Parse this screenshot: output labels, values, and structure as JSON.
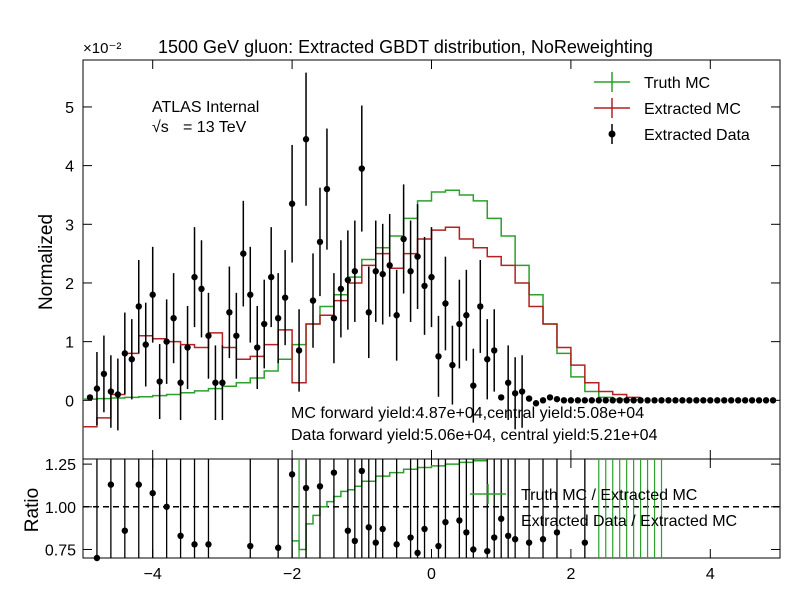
{
  "title": "1500 GeV gluon: Extracted GBDT distribution, NoReweighting",
  "scale_label": "×10⁻²",
  "atlas_label": "ATLAS Internal",
  "energy_sqrt": "√s",
  "energy_value": "= 13 TeV",
  "annotations": {
    "mc_yield": "MC forward yield:4.87e+04,central yield:5.08e+04",
    "data_yield": "Data forward yield:5.06e+04, central yield:5.21e+04"
  },
  "colors": {
    "truth": "#2ca02c",
    "extracted_mc": "#b22222",
    "data": "#000000"
  },
  "chart_data": [
    {
      "type": "line",
      "panel": "main",
      "ylabel": "Normalized",
      "ylim": [
        -1,
        5.8
      ],
      "xlim": [
        -5,
        5
      ],
      "yticks": [
        0,
        1,
        2,
        3,
        4,
        5
      ],
      "ytick_labels": [
        "0",
        "1",
        "2",
        "3",
        "4",
        "5"
      ],
      "xticks": [
        -4,
        -2,
        0,
        2,
        4
      ],
      "legend": [
        "Truth MC",
        "Extracted MC",
        "Extracted Data"
      ],
      "legend_position": "top-right",
      "series": [
        {
          "name": "Truth MC",
          "style": "step",
          "x": [
            -5,
            -4.8,
            -4.6,
            -4.4,
            -4.2,
            -4.0,
            -3.8,
            -3.6,
            -3.4,
            -3.2,
            -3.0,
            -2.8,
            -2.6,
            -2.4,
            -2.2,
            -2.0,
            -1.8,
            -1.6,
            -1.4,
            -1.2,
            -1.0,
            -0.8,
            -0.6,
            -0.4,
            -0.2,
            0.0,
            0.2,
            0.4,
            0.6,
            0.8,
            1.0,
            1.2,
            1.4,
            1.6,
            1.8,
            2.0,
            2.2,
            2.4,
            2.6,
            2.8,
            3.0
          ],
          "values": [
            0.02,
            0.03,
            0.04,
            0.05,
            0.06,
            0.08,
            0.1,
            0.13,
            0.16,
            0.2,
            0.24,
            0.3,
            0.38,
            0.5,
            0.7,
            0.95,
            1.3,
            1.6,
            1.8,
            2.1,
            2.4,
            2.6,
            2.8,
            3.1,
            3.4,
            3.55,
            3.58,
            3.5,
            3.4,
            3.1,
            2.8,
            2.3,
            1.8,
            1.3,
            0.8,
            0.4,
            0.15,
            0.05,
            0.02,
            0.01,
            0.0
          ]
        },
        {
          "name": "Extracted MC",
          "style": "step",
          "x": [
            -5,
            -4.8,
            -4.6,
            -4.4,
            -4.2,
            -4.0,
            -3.8,
            -3.6,
            -3.4,
            -3.2,
            -3.0,
            -2.8,
            -2.6,
            -2.4,
            -2.2,
            -2.0,
            -1.8,
            -1.6,
            -1.4,
            -1.2,
            -1.0,
            -0.8,
            -0.6,
            -0.4,
            -0.2,
            0.0,
            0.2,
            0.4,
            0.6,
            0.8,
            1.0,
            1.2,
            1.4,
            1.6,
            1.8,
            2.0,
            2.2,
            2.4,
            2.6,
            2.8,
            3.0
          ],
          "values": [
            -0.45,
            -0.3,
            0.1,
            0.8,
            1.1,
            1.05,
            1.0,
            0.95,
            0.9,
            1.15,
            0.9,
            0.7,
            0.75,
            0.95,
            1.2,
            0.3,
            1.3,
            1.45,
            1.7,
            2.0,
            2.3,
            2.5,
            2.25,
            2.5,
            2.75,
            2.9,
            2.95,
            2.75,
            2.6,
            2.45,
            2.3,
            2.0,
            1.6,
            1.3,
            0.9,
            0.6,
            0.3,
            0.15,
            0.1,
            0.05,
            0.0
          ]
        },
        {
          "name": "Extracted Data",
          "style": "points",
          "x": [
            -4.9,
            -4.8,
            -4.7,
            -4.6,
            -4.5,
            -4.4,
            -4.3,
            -4.2,
            -4.1,
            -4.0,
            -3.9,
            -3.8,
            -3.7,
            -3.6,
            -3.5,
            -3.4,
            -3.3,
            -3.2,
            -3.1,
            -3.0,
            -2.9,
            -2.8,
            -2.7,
            -2.6,
            -2.5,
            -2.4,
            -2.3,
            -2.2,
            -2.1,
            -2.0,
            -1.9,
            -1.8,
            -1.7,
            -1.6,
            -1.5,
            -1.4,
            -1.3,
            -1.2,
            -1.1,
            -1.0,
            -0.9,
            -0.8,
            -0.7,
            -0.6,
            -0.5,
            -0.4,
            -0.3,
            -0.2,
            -0.1,
            0.0,
            0.1,
            0.2,
            0.3,
            0.4,
            0.5,
            0.6,
            0.7,
            0.8,
            0.9,
            1.0,
            1.1,
            1.2,
            1.3,
            1.4,
            1.5,
            1.6,
            1.7,
            1.8,
            1.9,
            2.0,
            2.1,
            2.2,
            2.3,
            2.4,
            2.5,
            2.6,
            2.7,
            2.8,
            2.9,
            3.0,
            3.1,
            3.2,
            3.3,
            3.4,
            3.5,
            3.6,
            3.7,
            3.8,
            3.9,
            4.0,
            4.1,
            4.2,
            4.3,
            4.4,
            4.5,
            4.6,
            4.7,
            4.8,
            4.9
          ],
          "values": [
            0.05,
            0.2,
            0.45,
            0.15,
            0.1,
            0.8,
            0.7,
            1.6,
            0.95,
            1.8,
            0.32,
            1.0,
            1.4,
            0.3,
            0.9,
            2.1,
            1.9,
            1.1,
            0.3,
            0.3,
            1.5,
            1.1,
            2.5,
            1.8,
            0.9,
            1.3,
            2.1,
            1.4,
            1.75,
            3.35,
            0.85,
            4.45,
            1.7,
            2.7,
            3.6,
            1.4,
            1.9,
            2.05,
            2.2,
            3.95,
            1.5,
            2.2,
            2.15,
            2.3,
            1.45,
            2.75,
            2.2,
            2.45,
            1.95,
            2.1,
            0.75,
            1.65,
            0.6,
            1.3,
            1.45,
            0.25,
            1.6,
            0.7,
            0.85,
            0.05,
            0.3,
            0.12,
            0.15,
            0.03,
            -0.05,
            0.0,
            0.05,
            0.02,
            0.0,
            0.0,
            0.0,
            0.0,
            0.0,
            0.0,
            0.0,
            0.0,
            0.0,
            0.0,
            0.0,
            0.0,
            0.0,
            0.0,
            0.0,
            0.0,
            0.0,
            0.0,
            0.0,
            0.0,
            0.0,
            0.0,
            0.0,
            0.0,
            0.0,
            0.0,
            0.0,
            0.0,
            0.0,
            0.0,
            0.0
          ]
        }
      ]
    },
    {
      "type": "line",
      "panel": "ratio",
      "ylabel": "Ratio",
      "ylim": [
        0.7,
        1.28
      ],
      "xlim": [
        -5,
        5
      ],
      "yticks": [
        0.75,
        1.0,
        1.25
      ],
      "ytick_labels": [
        "0.75",
        "1.00",
        "1.25"
      ],
      "xticks": [
        -4,
        -2,
        0,
        2,
        4
      ],
      "xtick_labels": [
        "−4",
        "−2",
        "0",
        "2",
        "4"
      ],
      "legend": [
        "Truth MC / Extracted MC",
        "Extracted Data / Extracted MC"
      ],
      "legend_position": "right",
      "series": [
        {
          "name": "Truth MC / Extracted MC",
          "style": "step",
          "x": [
            -2.0,
            -1.9,
            -1.8,
            -1.7,
            -1.6,
            -1.5,
            -1.4,
            -1.3,
            -1.2,
            -1.1,
            -1.0,
            -0.8,
            -0.6,
            -0.4,
            -0.2,
            0.0,
            0.2,
            0.4,
            0.6,
            0.8
          ],
          "values": [
            0.8,
            0.75,
            0.9,
            0.95,
            1.0,
            1.03,
            1.06,
            1.09,
            1.1,
            1.12,
            1.15,
            1.18,
            1.2,
            1.22,
            1.23,
            1.24,
            1.25,
            1.26,
            1.27,
            1.28
          ]
        },
        {
          "name": "Extracted Data / Extracted MC",
          "style": "points",
          "x": [
            -4.8,
            -4.6,
            -4.4,
            -4.2,
            -4.0,
            -3.8,
            -3.6,
            -3.4,
            -3.2,
            -2.6,
            -2.2,
            -2.0,
            -1.8,
            -1.6,
            -1.4,
            -1.2,
            -1.1,
            -1.0,
            -0.9,
            -0.8,
            -0.7,
            -0.5,
            -0.3,
            -0.2,
            -0.1,
            0.1,
            0.2,
            0.4,
            0.5,
            0.6,
            0.8,
            0.9,
            1.0,
            1.1,
            1.2,
            1.4,
            1.6,
            1.8,
            2.2
          ],
          "values": [
            0.7,
            1.13,
            0.86,
            1.13,
            1.08,
            1.0,
            0.83,
            0.78,
            0.78,
            0.77,
            0.76,
            1.19,
            1.11,
            1.12,
            1.2,
            0.86,
            0.8,
            1.21,
            0.88,
            0.79,
            0.87,
            0.78,
            0.82,
            0.73,
            0.87,
            0.77,
            0.91,
            0.92,
            0.85,
            0.75,
            0.74,
            0.82,
            0.93,
            0.83,
            0.81,
            0.79,
            0.81,
            0.85,
            0.79
          ]
        }
      ]
    }
  ]
}
